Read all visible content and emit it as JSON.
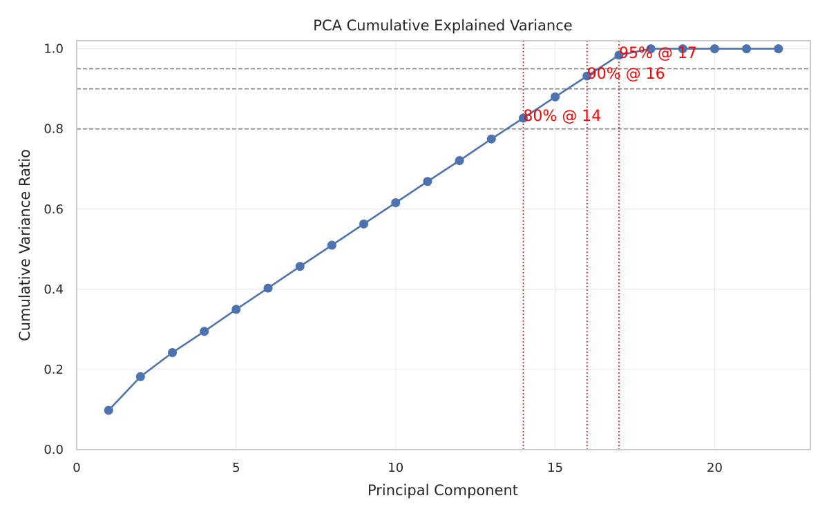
{
  "chart_data": {
    "type": "line",
    "title": "PCA Cumulative Explained Variance",
    "xlabel": "Principal Component",
    "ylabel": "Cumulative Variance Ratio",
    "xlim": [
      0,
      23
    ],
    "ylim": [
      0,
      1.02
    ],
    "xticks": [
      0,
      5,
      10,
      15,
      20
    ],
    "yticks": [
      0.0,
      0.2,
      0.4,
      0.6,
      0.8,
      1.0
    ],
    "xtick_labels": [
      "0",
      "5",
      "10",
      "15",
      "20"
    ],
    "ytick_labels": [
      "0.0",
      "0.2",
      "0.4",
      "0.6",
      "0.8",
      "1.0"
    ],
    "grid": true,
    "series": [
      {
        "x": [
          1,
          2,
          3,
          4,
          5,
          6,
          7,
          8,
          9,
          10,
          11,
          12,
          13,
          14,
          15,
          16,
          17,
          18,
          19,
          20,
          21,
          22
        ],
        "values": [
          0.098,
          0.182,
          0.242,
          0.295,
          0.35,
          0.403,
          0.457,
          0.51,
          0.563,
          0.616,
          0.669,
          0.721,
          0.775,
          0.827,
          0.88,
          0.932,
          0.984,
          1.0,
          1.0,
          1.0,
          1.0,
          1.0
        ],
        "color": "#4c72b0"
      }
    ],
    "threshold_lines": [
      0.8,
      0.9,
      0.95
    ],
    "component_lines": [
      14,
      16,
      17
    ],
    "annotations": [
      {
        "text": "80% @ 14",
        "x": 14,
        "y": 0.827
      },
      {
        "text": "90% @ 16",
        "x": 16,
        "y": 0.932
      },
      {
        "text": "95% @ 17",
        "x": 17,
        "y": 0.984
      }
    ],
    "colors": {
      "line": "#4c72b0",
      "threshold": "#808080",
      "component": "#ff0000",
      "annotation": "#ff0000",
      "grid": "#ebebeb",
      "spine": "#cccccc"
    }
  }
}
